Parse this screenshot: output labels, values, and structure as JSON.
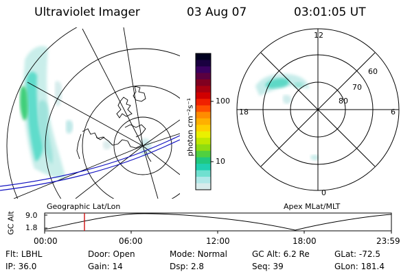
{
  "header": {
    "instrument": "Ultraviolet Imager",
    "date": "03 Aug 07",
    "time": "03:01:05 UT"
  },
  "colorbar": {
    "label": "photon cm⁻²s⁻¹",
    "ticks": [
      "100",
      "10"
    ],
    "colors": [
      "#000020",
      "#1a0040",
      "#3a0060",
      "#5a0040",
      "#800020",
      "#a80010",
      "#d00000",
      "#f02000",
      "#ff5000",
      "#ff8c00",
      "#ffb000",
      "#ffd000",
      "#eaf000",
      "#c0e800",
      "#90dc10",
      "#50d040",
      "#20c880",
      "#20d0b0",
      "#70e0d0",
      "#b0e8e8",
      "#d8ecec"
    ]
  },
  "left_map": {
    "label": "Geographic Lat/Lon"
  },
  "right_map": {
    "label": "Apex MLat/MLT",
    "mlt_labels": {
      "top": "12",
      "left": "18",
      "right": "6",
      "bottom": "0"
    },
    "lat_labels": [
      "60",
      "70",
      "80"
    ]
  },
  "altitude_plot": {
    "ylabel": "GC Alt",
    "yticks": [
      "9.0",
      "1.8"
    ],
    "xticks": [
      "00:00",
      "06:00",
      "12:00",
      "18:00",
      "23:59"
    ]
  },
  "status": {
    "row1": [
      {
        "label": "Flt:",
        "value": "LBHL"
      },
      {
        "label": "Door:",
        "value": "Open"
      },
      {
        "label": "Mode:",
        "value": "Normal"
      },
      {
        "label": "GC Alt:",
        "value": "6.2 Re"
      },
      {
        "label": "GLat:",
        "value": "-72.5"
      }
    ],
    "row2": [
      {
        "label": "IP:",
        "value": "36.0"
      },
      {
        "label": "Gain:",
        "value": "14"
      },
      {
        "label": "Dsp:",
        "value": "2.8"
      },
      {
        "label": "Seq:",
        "value": "39"
      },
      {
        "label": "GLon:",
        "value": "181.4"
      }
    ]
  }
}
